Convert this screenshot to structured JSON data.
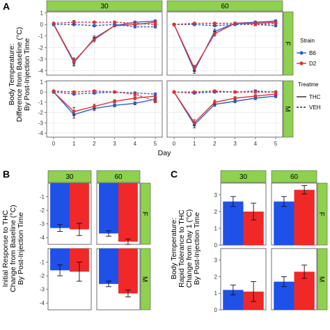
{
  "colors": {
    "B6": "#2f5fd0",
    "D2": "#e03030",
    "strip": "#8fd14f",
    "grid": "#e0e0e0",
    "bar_B6": "#1f50e8",
    "bar_D2": "#f02828"
  },
  "chart_data": [
    {
      "id": "A",
      "label": "A",
      "type": "line",
      "x": [
        0,
        1,
        2,
        3,
        4,
        5
      ],
      "xlabel": "Day",
      "ylabel_lines": [
        "Body Temperature:",
        "Difference from Baseline (°C)",
        "By Post-Injection Time"
      ],
      "ylim": [
        -4.4,
        1.1
      ],
      "yticks": [
        1,
        0,
        -1,
        -2,
        -3,
        -4
      ],
      "grid": true,
      "col_strips": [
        "30",
        "60"
      ],
      "row_strips": [
        "F",
        "M"
      ],
      "legend": {
        "strain_title": "Strain",
        "strain_entries": [
          "B6",
          "D2"
        ],
        "treatment_title": "Treatme",
        "treatment_entries": [
          "THC",
          "VEH"
        ]
      },
      "panels": [
        {
          "col": "30",
          "row": "F",
          "series": [
            {
              "strain": "B6",
              "treatment": "THC",
              "values": [
                0.0,
                -3.3,
                -1.2,
                -0.1,
                0.2,
                0.3
              ],
              "err": [
                0.1,
                0.3,
                0.2,
                0.1,
                0.1,
                0.1
              ]
            },
            {
              "strain": "D2",
              "treatment": "THC",
              "values": [
                0.05,
                -3.2,
                -1.3,
                -0.1,
                0.0,
                0.2
              ],
              "err": [
                0.1,
                0.3,
                0.2,
                0.1,
                0.1,
                0.1
              ]
            },
            {
              "strain": "B6",
              "treatment": "VEH",
              "values": [
                0.0,
                0.0,
                -0.1,
                0.0,
                -0.2,
                -0.2
              ],
              "err": [
                0.1,
                0.1,
                0.1,
                0.1,
                0.1,
                0.1
              ]
            },
            {
              "strain": "D2",
              "treatment": "VEH",
              "values": [
                0.1,
                0.2,
                0.2,
                0.2,
                0.1,
                0.0
              ],
              "err": [
                0.1,
                0.15,
                0.1,
                0.1,
                0.1,
                0.1
              ]
            }
          ]
        },
        {
          "col": "60",
          "row": "F",
          "series": [
            {
              "strain": "B6",
              "treatment": "THC",
              "values": [
                0.0,
                -4.0,
                -0.6,
                0.1,
                0.2,
                0.3
              ],
              "err": [
                0.1,
                0.25,
                0.2,
                0.1,
                0.1,
                0.1
              ]
            },
            {
              "strain": "D2",
              "treatment": "THC",
              "values": [
                0.0,
                -3.8,
                -0.8,
                0.1,
                0.1,
                0.2
              ],
              "err": [
                0.1,
                0.25,
                0.2,
                0.1,
                0.1,
                0.1
              ]
            },
            {
              "strain": "B6",
              "treatment": "VEH",
              "values": [
                0.0,
                0.0,
                -0.1,
                0.0,
                0.0,
                -0.1
              ],
              "err": [
                0.1,
                0.1,
                0.1,
                0.1,
                0.1,
                0.1
              ]
            },
            {
              "strain": "D2",
              "treatment": "VEH",
              "values": [
                0.0,
                0.1,
                0.1,
                0.1,
                0.0,
                0.1
              ],
              "err": [
                0.1,
                0.1,
                0.1,
                0.1,
                0.1,
                0.1
              ]
            }
          ]
        },
        {
          "col": "30",
          "row": "M",
          "series": [
            {
              "strain": "B6",
              "treatment": "THC",
              "values": [
                0.0,
                -2.2,
                -1.6,
                -1.3,
                -1.1,
                -0.7
              ],
              "err": [
                0.1,
                0.35,
                0.2,
                0.15,
                0.15,
                0.15
              ]
            },
            {
              "strain": "D2",
              "treatment": "THC",
              "values": [
                0.0,
                -1.9,
                -1.4,
                -0.9,
                -0.6,
                -0.4
              ],
              "err": [
                0.1,
                0.4,
                0.2,
                0.15,
                0.15,
                0.15
              ]
            },
            {
              "strain": "B6",
              "treatment": "VEH",
              "values": [
                0.0,
                -0.2,
                -0.1,
                0.0,
                -0.1,
                -0.2
              ],
              "err": [
                0.1,
                0.1,
                0.1,
                0.1,
                0.1,
                0.1
              ]
            },
            {
              "strain": "D2",
              "treatment": "VEH",
              "values": [
                0.1,
                0.0,
                0.1,
                0.0,
                -0.2,
                -0.9
              ],
              "err": [
                0.1,
                0.1,
                0.1,
                0.1,
                0.15,
                0.15
              ]
            }
          ]
        },
        {
          "col": "60",
          "row": "M",
          "series": [
            {
              "strain": "B6",
              "treatment": "THC",
              "values": [
                0.0,
                -3.2,
                -1.2,
                -0.9,
                -0.6,
                -0.4
              ],
              "err": [
                0.1,
                0.3,
                0.2,
                0.15,
                0.15,
                0.15
              ]
            },
            {
              "strain": "D2",
              "treatment": "THC",
              "values": [
                0.0,
                -3.0,
                -1.0,
                -0.6,
                -0.4,
                -0.2
              ],
              "err": [
                0.1,
                0.3,
                0.2,
                0.15,
                0.15,
                0.15
              ]
            },
            {
              "strain": "B6",
              "treatment": "VEH",
              "values": [
                0.0,
                -0.1,
                0.0,
                0.0,
                0.1,
                0.0
              ],
              "err": [
                0.1,
                0.1,
                0.1,
                0.1,
                0.1,
                0.1
              ]
            },
            {
              "strain": "D2",
              "treatment": "VEH",
              "values": [
                0.0,
                0.0,
                0.1,
                0.0,
                0.0,
                0.0
              ],
              "err": [
                0.1,
                0.1,
                0.1,
                0.1,
                0.1,
                0.1
              ]
            }
          ]
        }
      ]
    },
    {
      "id": "B",
      "label": "B",
      "type": "bar",
      "categories": [
        "B6",
        "D2"
      ],
      "ylabel_lines": [
        "Initial Response to THC",
        "Change from Baseline (°C)",
        "By Post-Injection Time"
      ],
      "ylim": [
        -4.5,
        0
      ],
      "yticks": [
        -1,
        -2,
        -3,
        -4
      ],
      "col_strips": [
        "30",
        "60"
      ],
      "row_strips": [
        "F",
        "M"
      ],
      "panels": [
        {
          "col": "30",
          "row": "F",
          "values": [
            -3.3,
            -3.4
          ],
          "err": [
            0.25,
            0.45
          ]
        },
        {
          "col": "60",
          "row": "F",
          "values": [
            -3.7,
            -4.3
          ],
          "err": [
            0.2,
            0.2
          ]
        },
        {
          "col": "30",
          "row": "M",
          "values": [
            -1.6,
            -1.7
          ],
          "err": [
            0.4,
            0.7
          ]
        },
        {
          "col": "60",
          "row": "M",
          "values": [
            -2.6,
            -3.3
          ],
          "err": [
            0.2,
            0.25
          ]
        }
      ]
    },
    {
      "id": "C",
      "label": "C",
      "type": "bar",
      "categories": [
        "B6",
        "D2"
      ],
      "ylabel_lines": [
        "Body Temperature:",
        "Rapid Tolerance to THC",
        "Change from Day 1 (°C)",
        "By Post-Injection Time"
      ],
      "ylim": [
        0,
        3.7
      ],
      "yticks": [
        0,
        1,
        2,
        3
      ],
      "col_strips": [
        "30",
        "60"
      ],
      "row_strips": [
        "F",
        "M"
      ],
      "panels": [
        {
          "col": "30",
          "row": "F",
          "values": [
            2.6,
            2.0
          ],
          "err": [
            0.3,
            0.5
          ]
        },
        {
          "col": "60",
          "row": "F",
          "values": [
            2.6,
            3.3
          ],
          "err": [
            0.3,
            0.25
          ]
        },
        {
          "col": "30",
          "row": "M",
          "values": [
            1.2,
            1.1
          ],
          "err": [
            0.3,
            0.6
          ]
        },
        {
          "col": "60",
          "row": "M",
          "values": [
            1.7,
            2.3
          ],
          "err": [
            0.3,
            0.4
          ]
        }
      ]
    }
  ]
}
